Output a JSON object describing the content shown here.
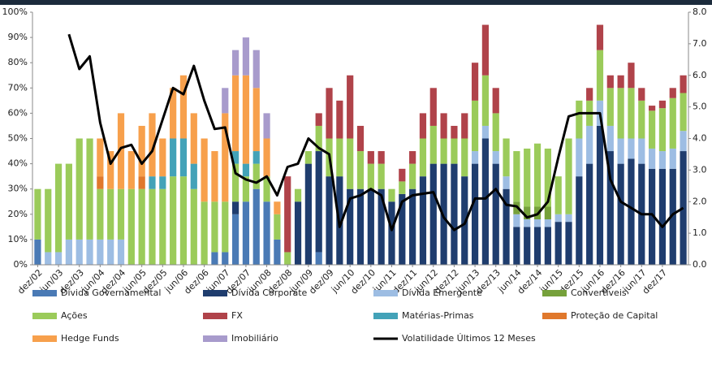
{
  "chart_data": {
    "type": "bar",
    "stacked": true,
    "categories": [
      "dez/02",
      null,
      "jun/03",
      null,
      "dez/03",
      null,
      "jun/04",
      null,
      "dez/04",
      null,
      "jun/05",
      null,
      "dez/05",
      null,
      "jun/06",
      null,
      "dez/06",
      null,
      "jun/07",
      null,
      "dez/07",
      null,
      "jun/08",
      null,
      "dez/08",
      null,
      "jun/09",
      null,
      "dez/09",
      null,
      "jun/10",
      null,
      "dez/10",
      null,
      "jun/11",
      null,
      "dez/11",
      null,
      "jun/12",
      null,
      "dez/12",
      null,
      "jun/13",
      null,
      "dez/13",
      null,
      "jun/14",
      null,
      "dez/14",
      null,
      "jun/15",
      null,
      "dez/15",
      null,
      "jun/16",
      null,
      "dez/16",
      null,
      "jun/17",
      null,
      "dez/17",
      null,
      null
    ],
    "ylim": [
      0,
      100
    ],
    "yticks": [
      {
        "value": 0,
        "label": "0%"
      },
      {
        "value": 10,
        "label": "10%"
      },
      {
        "value": 20,
        "label": "20%"
      },
      {
        "value": 30,
        "label": "30%"
      },
      {
        "value": 40,
        "label": "40%"
      },
      {
        "value": 50,
        "label": "50%"
      },
      {
        "value": 60,
        "label": "60%"
      },
      {
        "value": 70,
        "label": "70%"
      },
      {
        "value": 80,
        "label": "80%"
      },
      {
        "value": 90,
        "label": "90%"
      },
      {
        "value": 100,
        "label": "100%"
      }
    ],
    "y2lim": [
      0,
      8
    ],
    "y2ticks": [
      {
        "value": 0,
        "label": "0.0"
      },
      {
        "value": 1,
        "label": "1.0"
      },
      {
        "value": 2,
        "label": "2.0"
      },
      {
        "value": 3,
        "label": "3.0"
      },
      {
        "value": 4,
        "label": "4.0"
      },
      {
        "value": 5,
        "label": "5.0"
      },
      {
        "value": 6,
        "label": "6.0"
      },
      {
        "value": 7,
        "label": "7.0"
      },
      {
        "value": 8,
        "label": "8.0"
      }
    ],
    "grid": false,
    "series": [
      {
        "name": "Dívida Governamental",
        "color": "#4a7ab5",
        "values": [
          10,
          0,
          0,
          0,
          0,
          0,
          0,
          0,
          0,
          0,
          0,
          0,
          0,
          0,
          0,
          0,
          0,
          5,
          5,
          20,
          25,
          30,
          25,
          10,
          0,
          0,
          0,
          5,
          0,
          0,
          0,
          0,
          0,
          0,
          0,
          0,
          0,
          0,
          0,
          0,
          0,
          0,
          0,
          0,
          0,
          0,
          0,
          0,
          0,
          0,
          0,
          0,
          0,
          0,
          0,
          0,
          0,
          0,
          0,
          0,
          0,
          0,
          0
        ]
      },
      {
        "name": "Dívida Corporate",
        "color": "#1f3d6e",
        "values": [
          0,
          0,
          0,
          0,
          0,
          0,
          0,
          0,
          0,
          0,
          0,
          0,
          0,
          0,
          0,
          0,
          0,
          0,
          0,
          5,
          0,
          0,
          0,
          0,
          0,
          25,
          40,
          40,
          35,
          35,
          30,
          30,
          30,
          30,
          25,
          28,
          30,
          35,
          40,
          40,
          40,
          35,
          40,
          50,
          40,
          30,
          15,
          15,
          15,
          15,
          17,
          17,
          35,
          40,
          55,
          45,
          40,
          42,
          40,
          38,
          38,
          38,
          45
        ]
      },
      {
        "name": "Dívida Emergente",
        "color": "#9dbde3",
        "values": [
          0,
          5,
          5,
          10,
          10,
          10,
          10,
          10,
          10,
          0,
          0,
          0,
          0,
          0,
          0,
          0,
          0,
          0,
          0,
          0,
          0,
          0,
          0,
          0,
          0,
          0,
          0,
          0,
          0,
          0,
          0,
          0,
          0,
          0,
          0,
          0,
          0,
          0,
          0,
          0,
          0,
          0,
          5,
          5,
          5,
          5,
          5,
          3,
          3,
          3,
          3,
          3,
          15,
          15,
          10,
          10,
          10,
          8,
          10,
          8,
          7,
          8,
          8
        ]
      },
      {
        "name": "Convertíveis",
        "color": "#76a13b",
        "values": [
          0,
          0,
          0,
          0,
          0,
          0,
          0,
          0,
          0,
          0,
          0,
          0,
          0,
          0,
          0,
          0,
          0,
          0,
          0,
          0,
          0,
          0,
          0,
          0,
          0,
          0,
          0,
          0,
          0,
          0,
          0,
          0,
          0,
          0,
          0,
          0,
          0,
          0,
          0,
          0,
          0,
          0,
          0,
          0,
          0,
          0,
          5,
          5,
          5,
          5,
          0,
          0,
          0,
          0,
          0,
          0,
          0,
          0,
          0,
          0,
          0,
          0,
          0
        ]
      },
      {
        "name": "Ações",
        "color": "#9bcb5a",
        "values": [
          20,
          25,
          35,
          30,
          40,
          40,
          20,
          20,
          20,
          30,
          30,
          30,
          30,
          35,
          35,
          30,
          25,
          20,
          20,
          15,
          10,
          10,
          10,
          10,
          5,
          5,
          5,
          10,
          15,
          15,
          20,
          15,
          10,
          10,
          5,
          5,
          10,
          15,
          15,
          10,
          10,
          15,
          20,
          20,
          15,
          15,
          20,
          23,
          25,
          23,
          15,
          30,
          15,
          10,
          20,
          15,
          20,
          20,
          15,
          15,
          17,
          20,
          15
        ]
      },
      {
        "name": "FX",
        "color": "#b0434a",
        "values": [
          0,
          0,
          0,
          0,
          0,
          0,
          0,
          0,
          0,
          0,
          0,
          0,
          0,
          0,
          0,
          0,
          0,
          0,
          0,
          0,
          0,
          0,
          0,
          0,
          30,
          0,
          0,
          5,
          20,
          15,
          25,
          10,
          5,
          5,
          0,
          5,
          5,
          10,
          15,
          10,
          5,
          10,
          15,
          20,
          10,
          0,
          0,
          0,
          0,
          0,
          0,
          0,
          0,
          5,
          10,
          5,
          5,
          10,
          5,
          2,
          3,
          4,
          7
        ]
      },
      {
        "name": "Matérias-Primas",
        "color": "#43a2b8",
        "values": [
          0,
          0,
          0,
          0,
          0,
          0,
          0,
          0,
          0,
          0,
          0,
          5,
          5,
          15,
          15,
          10,
          0,
          0,
          0,
          5,
          5,
          5,
          0,
          0,
          0,
          0,
          0,
          0,
          0,
          0,
          0,
          0,
          0,
          0,
          0,
          0,
          0,
          0,
          0,
          0,
          0,
          0,
          0,
          0,
          0,
          0,
          0,
          0,
          0,
          0,
          0,
          0,
          0,
          0,
          0,
          0,
          0,
          0,
          0,
          0,
          0,
          0,
          0
        ]
      },
      {
        "name": "Proteção de Capital",
        "color": "#e0782c",
        "values": [
          0,
          0,
          0,
          0,
          0,
          0,
          5,
          0,
          0,
          0,
          5,
          0,
          0,
          0,
          0,
          0,
          0,
          0,
          0,
          0,
          0,
          0,
          0,
          0,
          0,
          0,
          0,
          0,
          0,
          0,
          0,
          0,
          0,
          0,
          0,
          0,
          0,
          0,
          0,
          0,
          0,
          0,
          0,
          0,
          0,
          0,
          0,
          0,
          0,
          0,
          0,
          0,
          0,
          0,
          0,
          0,
          0,
          0,
          0,
          0,
          0,
          0,
          0
        ]
      },
      {
        "name": "Hedge Funds",
        "color": "#f7a04c",
        "values": [
          0,
          0,
          0,
          0,
          0,
          0,
          15,
          15,
          30,
          15,
          20,
          25,
          15,
          20,
          25,
          20,
          25,
          20,
          35,
          30,
          35,
          25,
          15,
          5,
          0,
          0,
          0,
          0,
          0,
          0,
          0,
          0,
          0,
          0,
          0,
          0,
          0,
          0,
          0,
          0,
          0,
          0,
          0,
          0,
          0,
          0,
          0,
          0,
          0,
          0,
          0,
          0,
          0,
          0,
          0,
          0,
          0,
          0,
          0,
          0,
          0,
          0,
          0
        ]
      },
      {
        "name": "Imobiliário",
        "color": "#a89bcc",
        "values": [
          0,
          0,
          0,
          0,
          0,
          0,
          0,
          0,
          0,
          0,
          0,
          0,
          0,
          0,
          0,
          0,
          0,
          0,
          10,
          10,
          15,
          15,
          10,
          0,
          0,
          0,
          0,
          0,
          0,
          0,
          0,
          0,
          0,
          0,
          0,
          0,
          0,
          0,
          0,
          0,
          0,
          0,
          0,
          0,
          0,
          0,
          0,
          0,
          0,
          0,
          0,
          0,
          0,
          0,
          0,
          0,
          0,
          0,
          0,
          0,
          0,
          0,
          0
        ]
      },
      {
        "name": "Volatilidade Últimos 12 Meses",
        "color": "#000000",
        "type": "line",
        "axis": "y2",
        "values": [
          null,
          null,
          null,
          7.3,
          6.2,
          6.6,
          4.5,
          3.2,
          3.7,
          3.8,
          3.2,
          3.6,
          4.6,
          5.6,
          5.4,
          6.3,
          5.2,
          4.3,
          4.35,
          2.9,
          2.7,
          2.6,
          2.8,
          2.2,
          3.1,
          3.2,
          4.0,
          3.7,
          3.5,
          1.2,
          2.1,
          2.2,
          2.4,
          2.2,
          1.1,
          2.0,
          2.2,
          2.25,
          2.3,
          1.5,
          1.1,
          1.3,
          2.1,
          2.1,
          2.4,
          1.9,
          1.85,
          1.5,
          1.6,
          2.0,
          3.4,
          4.7,
          4.8,
          4.8,
          4.8,
          2.7,
          2.0,
          1.8,
          1.6,
          1.6,
          1.2,
          1.6,
          1.8
        ]
      }
    ]
  }
}
